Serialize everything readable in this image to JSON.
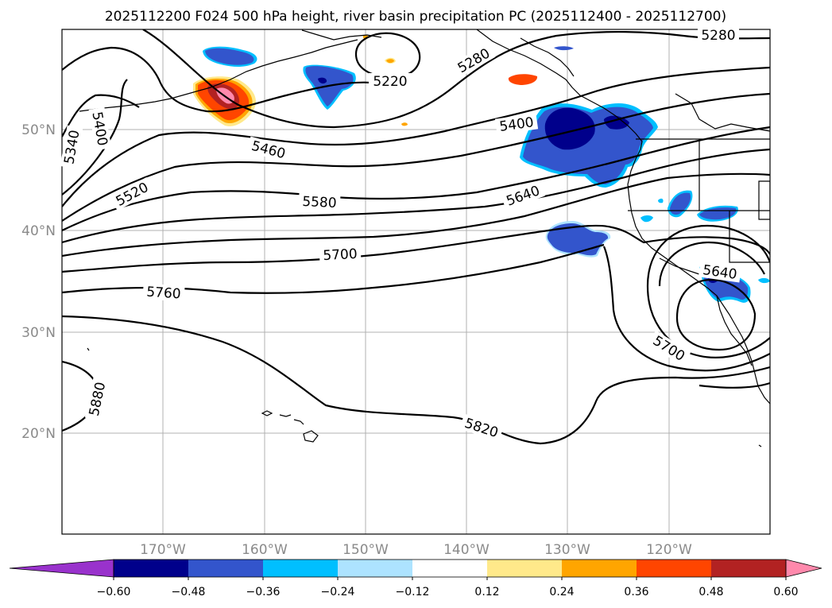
{
  "title": "2025112200 F024 500 hPa height, river basin precipitation PC (2025112400 - 2025112700)",
  "lat_labels": [
    "50°N",
    "40°N",
    "30°N",
    "20°N"
  ],
  "lon_labels": [
    "170°W",
    "160°W",
    "150°W",
    "140°W",
    "130°W",
    "120°W"
  ],
  "contour_labels": [
    "5280",
    "5220",
    "5280",
    "5400",
    "5400",
    "5340",
    "5460",
    "5520",
    "5580",
    "5640",
    "5700",
    "5760",
    "5640",
    "5700",
    "5880",
    "5820"
  ],
  "colorbar": {
    "ticks": [
      "−0.60",
      "−0.48",
      "−0.36",
      "−0.24",
      "−0.12",
      "0.12",
      "0.24",
      "0.36",
      "0.48",
      "0.60"
    ],
    "colors": [
      "#9932CC",
      "#00008B",
      "#3355CC",
      "#00BFFF",
      "#ADE3FF",
      "#FFFFFF",
      "#FFE98A",
      "#FFA500",
      "#FF4500",
      "#B22222",
      "#FF89AC"
    ]
  }
}
